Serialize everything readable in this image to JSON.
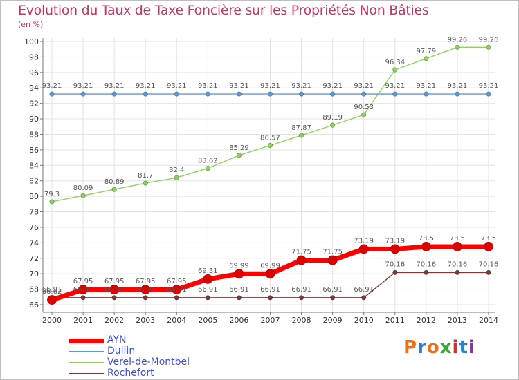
{
  "title": "Evolution du Taux de Taxe Foncière sur les Propriétés Non Bâties",
  "subtitle": "(en %)",
  "logo": {
    "text": "Proxiti",
    "colors": [
      "#e8731c",
      "#2f7fc6",
      "#e8731c",
      "#3aa83a",
      "#d32f2f",
      "#2f7fc6",
      "#9c27b0"
    ]
  },
  "chart_data": {
    "type": "line",
    "title": "Evolution du Taux de Taxe Foncière sur les Propriétés Non Bâties",
    "ylabel": "(en %)",
    "xlabel": "",
    "ylim": [
      66,
      100
    ],
    "yticks": [
      "66",
      "68",
      "70",
      "72",
      "74",
      "76",
      "78",
      "80",
      "82",
      "84",
      "86",
      "88",
      "90",
      "92",
      "94",
      "96",
      "98",
      "100"
    ],
    "categories": [
      "2000",
      "2001",
      "2002",
      "2003",
      "2004",
      "2005",
      "2006",
      "2007",
      "2008",
      "2009",
      "2010",
      "2011",
      "2012",
      "2013",
      "2014"
    ],
    "grid": true,
    "legend_position": "bottom-left",
    "series": [
      {
        "name": "AYN",
        "color": "#ff0000",
        "values": [
          66.62,
          67.95,
          67.95,
          67.95,
          67.95,
          69.31,
          69.99,
          69.99,
          71.75,
          71.75,
          73.19,
          73.19,
          73.5,
          73.5,
          73.5
        ],
        "labels": [
          "66.62",
          "67.95",
          "67.95",
          "67.95",
          "67.95",
          "69.31",
          "69.99",
          "69.99",
          "71.75",
          "71.75",
          "73.19",
          "73.19",
          "73.5",
          "73.5",
          "73.5"
        ]
      },
      {
        "name": "Dullin",
        "color": "#5b9bd5",
        "values": [
          93.21,
          93.21,
          93.21,
          93.21,
          93.21,
          93.21,
          93.21,
          93.21,
          93.21,
          93.21,
          93.21,
          93.21,
          93.21,
          93.21,
          93.21
        ],
        "labels": [
          "93.21",
          "93.21",
          "93.21",
          "93.21",
          "93.21",
          "93.21",
          "93.21",
          "93.21",
          "93.21",
          "93.21",
          "93.21",
          "93.21",
          "93.21",
          "93.21",
          "93.21"
        ]
      },
      {
        "name": "Verel-de-Montbel",
        "color": "#8fd35a",
        "values": [
          79.3,
          80.09,
          80.89,
          81.7,
          82.4,
          83.62,
          85.29,
          86.57,
          87.87,
          89.19,
          90.53,
          96.34,
          97.79,
          99.26,
          99.26
        ],
        "labels": [
          "79.3",
          "80.09",
          "80.89",
          "81.7",
          "82.4",
          "83.62",
          "85.29",
          "86.57",
          "87.87",
          "89.19",
          "90.53",
          "96.34",
          "97.79",
          "99.26",
          "99.26"
        ]
      },
      {
        "name": "Rochefort",
        "color": "#7b3a3a",
        "values": [
          66.91,
          66.91,
          66.91,
          66.91,
          66.91,
          66.91,
          66.91,
          66.91,
          66.91,
          66.91,
          66.91,
          70.16,
          70.16,
          70.16,
          70.16
        ],
        "labels": [
          "66.91",
          "66.91",
          "66.91",
          "66.91",
          "66.91",
          "66.91",
          "66.91",
          "66.91",
          "66.91",
          "66.91",
          "66.91",
          "70.16",
          "70.16",
          "70.16",
          "70.16"
        ]
      }
    ]
  }
}
